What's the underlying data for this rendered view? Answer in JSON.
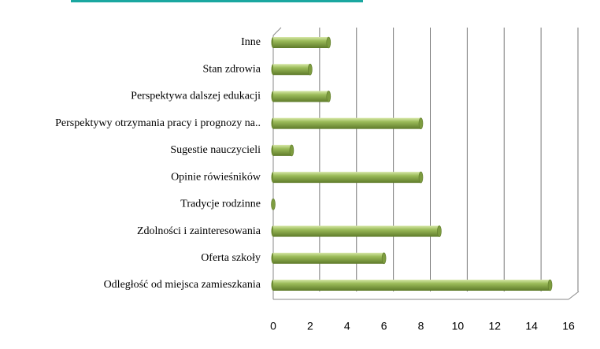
{
  "chart_data": {
    "type": "barh",
    "categories": [
      "Inne",
      "Stan zdrowia",
      "Perspektywa dalszej edukacji",
      "Perspektywy otrzymania pracy i prognozy na..",
      "Sugestie nauczycieli",
      "Opinie rówieśników",
      "Tradycje rodzinne",
      "Zdolności i zainteresowania",
      "Oferta szkoły",
      "Odległość od miejsca zamieszkania"
    ],
    "values": [
      3,
      2,
      3,
      8,
      1,
      8,
      0,
      9,
      6,
      15
    ],
    "color": "#9bbb59",
    "xlim": [
      0,
      16
    ],
    "xticks": [
      0,
      2,
      4,
      6,
      8,
      10,
      12,
      14,
      16
    ],
    "grid": true
  }
}
